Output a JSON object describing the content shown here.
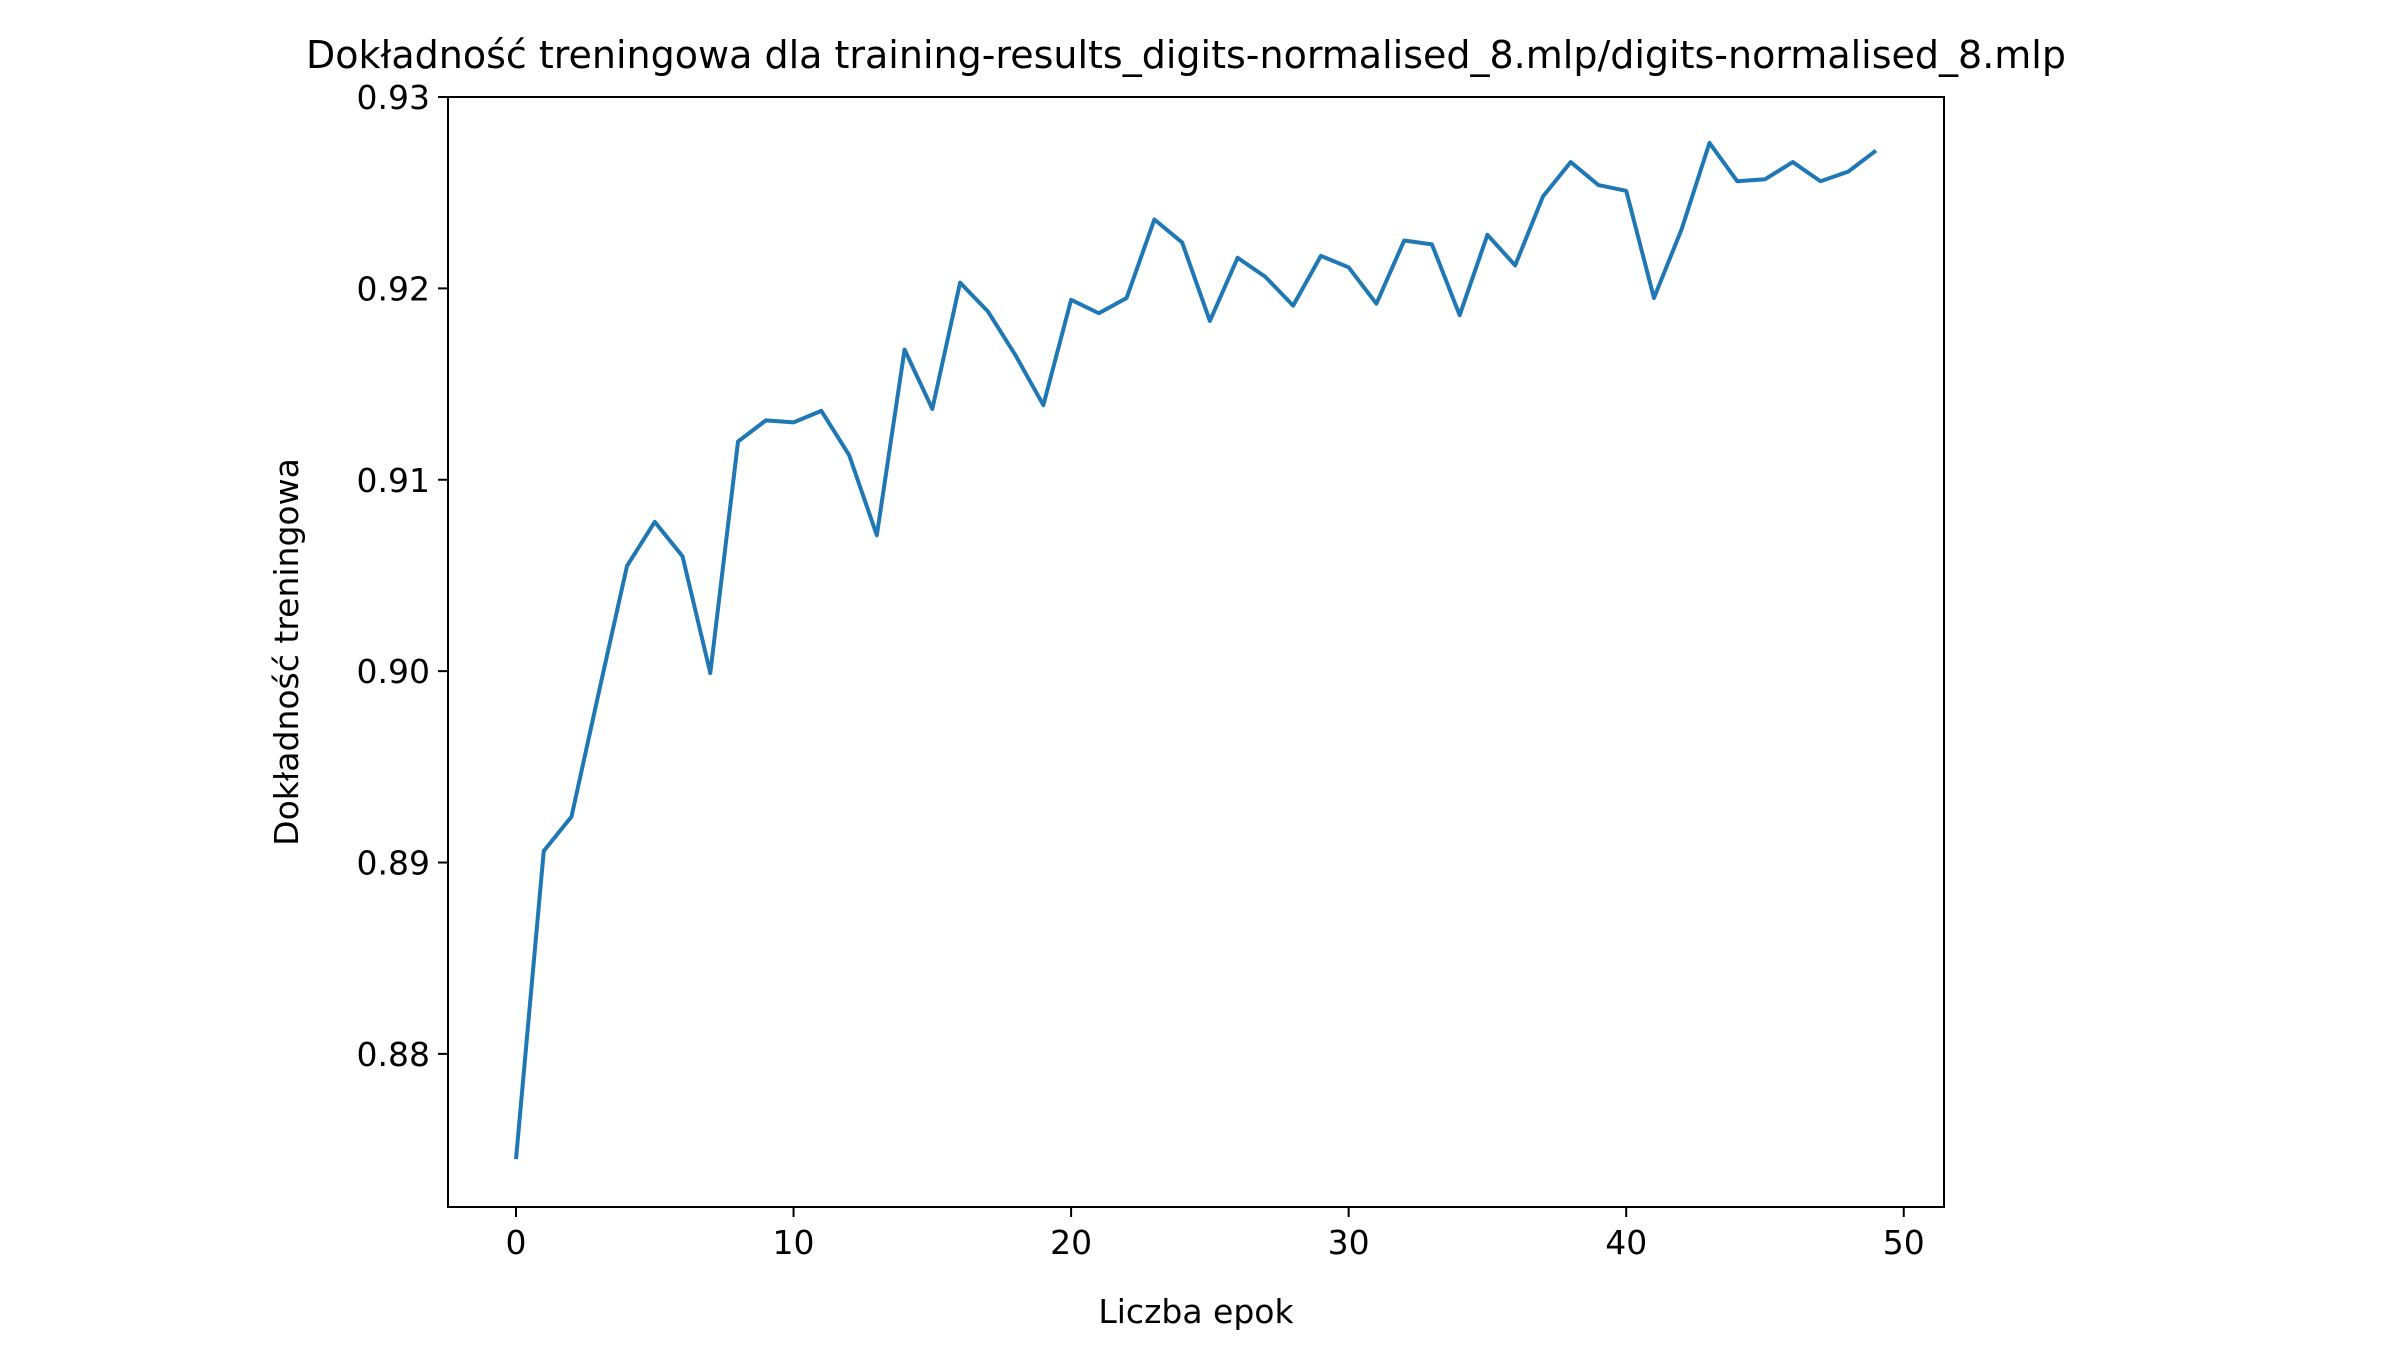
{
  "chart_data": {
    "type": "line",
    "title": "Dokładność treningowa dla training-results_digits-normalised_8.mlp/digits-normalised_8.mlp",
    "xlabel": "Liczba epok",
    "ylabel": "Dokładność treningowa",
    "xlim": [
      -2.45,
      51.45
    ],
    "ylim": [
      0.872,
      0.93
    ],
    "grid": false,
    "legend": "none",
    "x_ticks": [
      0,
      10,
      20,
      30,
      40,
      50
    ],
    "x_tick_labels": [
      "0",
      "10",
      "20",
      "30",
      "40",
      "50"
    ],
    "y_ticks": [
      0.88,
      0.89,
      0.9,
      0.91,
      0.92,
      0.93
    ],
    "y_tick_labels": [
      "0.88",
      "0.89",
      "0.90",
      "0.91",
      "0.92",
      "0.93"
    ],
    "series": [
      {
        "color": "#1f77b4",
        "x": [
          0,
          1,
          2,
          3,
          4,
          5,
          6,
          7,
          8,
          9,
          10,
          11,
          12,
          13,
          14,
          15,
          16,
          17,
          18,
          19,
          20,
          21,
          22,
          23,
          24,
          25,
          26,
          27,
          28,
          29,
          30,
          31,
          32,
          33,
          34,
          35,
          36,
          37,
          38,
          39,
          40,
          41,
          42,
          43,
          44,
          45,
          46,
          47,
          48,
          49
        ],
        "values": [
          0.8745,
          0.8906,
          0.8924,
          0.899,
          0.9055,
          0.9078,
          0.906,
          0.8999,
          0.912,
          0.9131,
          0.913,
          0.9136,
          0.9113,
          0.9071,
          0.9168,
          0.9137,
          0.9203,
          0.9188,
          0.9165,
          0.9139,
          0.9194,
          0.9187,
          0.9195,
          0.9236,
          0.9224,
          0.9183,
          0.9216,
          0.9206,
          0.9191,
          0.9217,
          0.9211,
          0.9192,
          0.9225,
          0.9223,
          0.9186,
          0.9228,
          0.9212,
          0.9248,
          0.9266,
          0.9254,
          0.9251,
          0.9195,
          0.9231,
          0.9276,
          0.9256,
          0.9257,
          0.9266,
          0.9256,
          0.9261,
          0.9272
        ]
      }
    ]
  }
}
